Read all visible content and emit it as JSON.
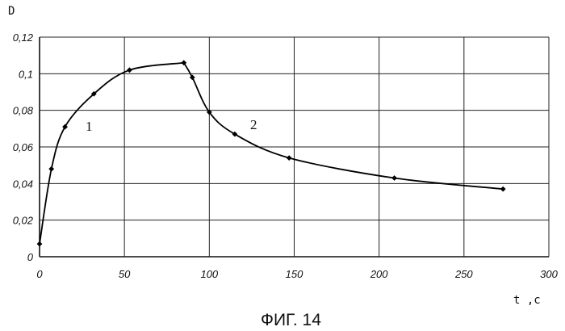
{
  "chart_data": {
    "type": "line",
    "ylabel": "D",
    "xlabel": "t ,c",
    "caption": "ФИГ. 14",
    "xlim": [
      0,
      300
    ],
    "ylim": [
      0,
      0.12
    ],
    "x_ticks": [
      0,
      50,
      100,
      150,
      200,
      250,
      300
    ],
    "y_ticks": [
      0,
      0.02,
      0.04,
      0.06,
      0.08,
      0.1,
      0.12
    ],
    "x_tick_labels": [
      "0",
      "50",
      "100",
      "150",
      "200",
      "250",
      "300"
    ],
    "y_tick_labels": [
      "0",
      "0,02",
      "0,04",
      "0,06",
      "0,08",
      "0,1",
      "0,12"
    ],
    "grid": true,
    "series": [
      {
        "name": "1",
        "x": [
          0,
          7,
          15,
          32,
          53,
          85
        ],
        "y": [
          0.007,
          0.048,
          0.071,
          0.089,
          0.102,
          0.106
        ]
      },
      {
        "name": "2",
        "x": [
          85,
          90,
          100,
          115,
          147,
          209,
          273
        ],
        "y": [
          0.106,
          0.098,
          0.079,
          0.067,
          0.054,
          0.043,
          0.037
        ]
      }
    ]
  }
}
